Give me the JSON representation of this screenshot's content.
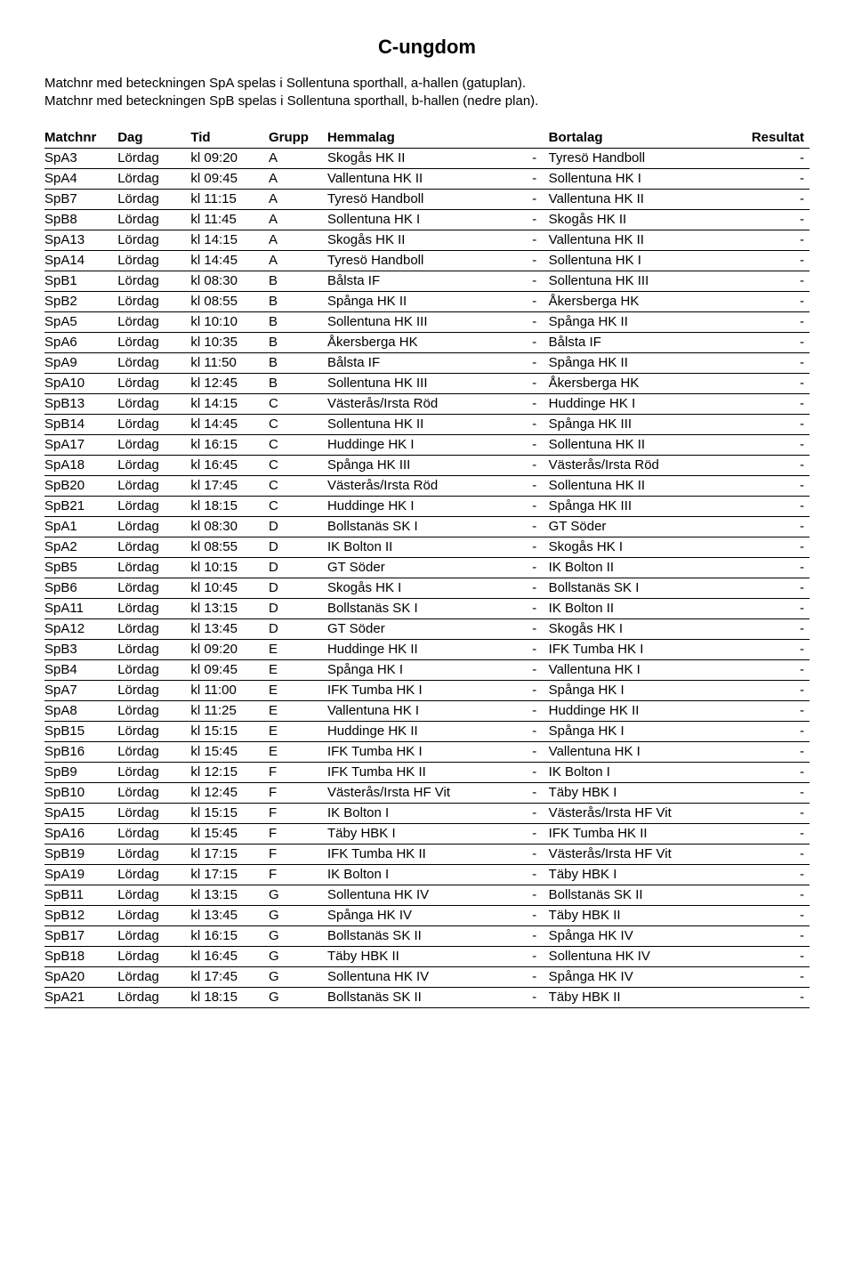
{
  "title": "C-ungdom",
  "intro_line1": "Matchnr med beteckningen SpA spelas i Sollentuna sporthall, a-hallen (gatuplan).",
  "intro_line2": "Matchnr med beteckningen SpB spelas i Sollentuna sporthall, b-hallen (nedre plan).",
  "headers": {
    "matchnr": "Matchnr",
    "dag": "Dag",
    "tid": "Tid",
    "grupp": "Grupp",
    "hemmalag": "Hemmalag",
    "bortalag": "Bortalag",
    "resultat": "Resultat"
  },
  "rows": [
    {
      "m": "SpA3",
      "d": "Lördag",
      "t": "kl 09:20",
      "g": "A",
      "h": "Skogås HK II",
      "a": "Tyresö Handboll",
      "r": "-"
    },
    {
      "m": "SpA4",
      "d": "Lördag",
      "t": "kl 09:45",
      "g": "A",
      "h": "Vallentuna HK II",
      "a": "Sollentuna HK I",
      "r": "-"
    },
    {
      "m": "SpB7",
      "d": "Lördag",
      "t": "kl 11:15",
      "g": "A",
      "h": "Tyresö Handboll",
      "a": "Vallentuna HK II",
      "r": "-"
    },
    {
      "m": "SpB8",
      "d": "Lördag",
      "t": "kl 11:45",
      "g": "A",
      "h": "Sollentuna HK I",
      "a": "Skogås HK II",
      "r": "-"
    },
    {
      "m": "SpA13",
      "d": "Lördag",
      "t": "kl 14:15",
      "g": "A",
      "h": "Skogås HK II",
      "a": "Vallentuna HK II",
      "r": "-"
    },
    {
      "m": "SpA14",
      "d": "Lördag",
      "t": "kl 14:45",
      "g": "A",
      "h": "Tyresö Handboll",
      "a": "Sollentuna HK I",
      "r": "-"
    },
    {
      "m": "SpB1",
      "d": "Lördag",
      "t": "kl 08:30",
      "g": "B",
      "h": "Bålsta IF",
      "a": "Sollentuna HK III",
      "r": "-"
    },
    {
      "m": "SpB2",
      "d": "Lördag",
      "t": "kl 08:55",
      "g": "B",
      "h": "Spånga HK II",
      "a": "Åkersberga HK",
      "r": "-"
    },
    {
      "m": "SpA5",
      "d": "Lördag",
      "t": "kl 10:10",
      "g": "B",
      "h": "Sollentuna HK III",
      "a": "Spånga HK II",
      "r": "-"
    },
    {
      "m": "SpA6",
      "d": "Lördag",
      "t": "kl 10:35",
      "g": "B",
      "h": "Åkersberga HK",
      "a": "Bålsta IF",
      "r": "-"
    },
    {
      "m": "SpA9",
      "d": "Lördag",
      "t": "kl 11:50",
      "g": "B",
      "h": "Bålsta IF",
      "a": "Spånga HK II",
      "r": "-"
    },
    {
      "m": "SpA10",
      "d": "Lördag",
      "t": "kl 12:45",
      "g": "B",
      "h": "Sollentuna HK III",
      "a": "Åkersberga HK",
      "r": "-"
    },
    {
      "m": "SpB13",
      "d": "Lördag",
      "t": "kl 14:15",
      "g": "C",
      "h": "Västerås/Irsta Röd",
      "a": "Huddinge HK I",
      "r": "-"
    },
    {
      "m": "SpB14",
      "d": "Lördag",
      "t": "kl 14:45",
      "g": "C",
      "h": "Sollentuna HK II",
      "a": "Spånga HK III",
      "r": "-"
    },
    {
      "m": "SpA17",
      "d": "Lördag",
      "t": "kl 16:15",
      "g": "C",
      "h": "Huddinge HK I",
      "a": "Sollentuna HK II",
      "r": "-"
    },
    {
      "m": "SpA18",
      "d": "Lördag",
      "t": "kl 16:45",
      "g": "C",
      "h": "Spånga HK III",
      "a": "Västerås/Irsta Röd",
      "r": "-"
    },
    {
      "m": "SpB20",
      "d": "Lördag",
      "t": "kl 17:45",
      "g": "C",
      "h": "Västerås/Irsta Röd",
      "a": "Sollentuna HK II",
      "r": "-"
    },
    {
      "m": "SpB21",
      "d": "Lördag",
      "t": "kl 18:15",
      "g": "C",
      "h": "Huddinge HK I",
      "a": "Spånga HK III",
      "r": "-"
    },
    {
      "m": "SpA1",
      "d": "Lördag",
      "t": "kl 08:30",
      "g": "D",
      "h": "Bollstanäs SK I",
      "a": "GT Söder",
      "r": "-"
    },
    {
      "m": "SpA2",
      "d": "Lördag",
      "t": "kl 08:55",
      "g": "D",
      "h": "IK Bolton II",
      "a": "Skogås HK I",
      "r": "-"
    },
    {
      "m": "SpB5",
      "d": "Lördag",
      "t": "kl 10:15",
      "g": "D",
      "h": "GT Söder",
      "a": "IK Bolton II",
      "r": "-"
    },
    {
      "m": "SpB6",
      "d": "Lördag",
      "t": "kl 10:45",
      "g": "D",
      "h": "Skogås HK I",
      "a": "Bollstanäs SK I",
      "r": "-"
    },
    {
      "m": "SpA11",
      "d": "Lördag",
      "t": "kl 13:15",
      "g": "D",
      "h": "Bollstanäs SK I",
      "a": "IK Bolton II",
      "r": "-"
    },
    {
      "m": "SpA12",
      "d": "Lördag",
      "t": "kl 13:45",
      "g": "D",
      "h": "GT Söder",
      "a": "Skogås HK I",
      "r": "-"
    },
    {
      "m": "SpB3",
      "d": "Lördag",
      "t": "kl 09:20",
      "g": "E",
      "h": "Huddinge HK II",
      "a": "IFK Tumba HK I",
      "r": "-"
    },
    {
      "m": "SpB4",
      "d": "Lördag",
      "t": "kl 09:45",
      "g": "E",
      "h": "Spånga HK I",
      "a": "Vallentuna HK I",
      "r": "-"
    },
    {
      "m": "SpA7",
      "d": "Lördag",
      "t": "kl 11:00",
      "g": "E",
      "h": "IFK Tumba HK I",
      "a": "Spånga HK I",
      "r": "-"
    },
    {
      "m": "SpA8",
      "d": "Lördag",
      "t": "kl 11:25",
      "g": "E",
      "h": "Vallentuna HK I",
      "a": "Huddinge HK II",
      "r": "-"
    },
    {
      "m": "SpB15",
      "d": "Lördag",
      "t": "kl 15:15",
      "g": "E",
      "h": "Huddinge HK II",
      "a": "Spånga HK I",
      "r": "-"
    },
    {
      "m": "SpB16",
      "d": "Lördag",
      "t": "kl 15:45",
      "g": "E",
      "h": "IFK Tumba HK I",
      "a": "Vallentuna HK I",
      "r": "-"
    },
    {
      "m": "SpB9",
      "d": "Lördag",
      "t": "kl 12:15",
      "g": "F",
      "h": "IFK Tumba HK II",
      "a": "IK Bolton I",
      "r": "-"
    },
    {
      "m": "SpB10",
      "d": "Lördag",
      "t": "kl 12:45",
      "g": "F",
      "h": "Västerås/Irsta HF Vit",
      "a": "Täby HBK I",
      "r": "-"
    },
    {
      "m": "SpA15",
      "d": "Lördag",
      "t": "kl 15:15",
      "g": "F",
      "h": "IK Bolton I",
      "a": "Västerås/Irsta HF Vit",
      "r": "-"
    },
    {
      "m": "SpA16",
      "d": "Lördag",
      "t": "kl 15:45",
      "g": "F",
      "h": "Täby HBK I",
      "a": "IFK Tumba HK II",
      "r": "-"
    },
    {
      "m": "SpB19",
      "d": "Lördag",
      "t": "kl 17:15",
      "g": "F",
      "h": "IFK Tumba HK II",
      "a": "Västerås/Irsta HF Vit",
      "r": "-"
    },
    {
      "m": "SpA19",
      "d": "Lördag",
      "t": "kl 17:15",
      "g": "F",
      "h": "IK Bolton I",
      "a": "Täby HBK I",
      "r": "-"
    },
    {
      "m": "SpB11",
      "d": "Lördag",
      "t": "kl 13:15",
      "g": "G",
      "h": "Sollentuna HK IV",
      "a": "Bollstanäs SK II",
      "r": "-"
    },
    {
      "m": "SpB12",
      "d": "Lördag",
      "t": "kl 13:45",
      "g": "G",
      "h": "Spånga HK IV",
      "a": "Täby HBK II",
      "r": "-"
    },
    {
      "m": "SpB17",
      "d": "Lördag",
      "t": "kl 16:15",
      "g": "G",
      "h": "Bollstanäs SK II",
      "a": "Spånga HK IV",
      "r": "-"
    },
    {
      "m": "SpB18",
      "d": "Lördag",
      "t": "kl 16:45",
      "g": "G",
      "h": "Täby HBK II",
      "a": "Sollentuna HK IV",
      "r": "-"
    },
    {
      "m": "SpA20",
      "d": "Lördag",
      "t": "kl 17:45",
      "g": "G",
      "h": "Sollentuna HK IV",
      "a": "Spånga HK IV",
      "r": "-"
    },
    {
      "m": "SpA21",
      "d": "Lördag",
      "t": "kl 18:15",
      "g": "G",
      "h": "Bollstanäs SK II",
      "a": "Täby HBK II",
      "r": "-"
    }
  ]
}
